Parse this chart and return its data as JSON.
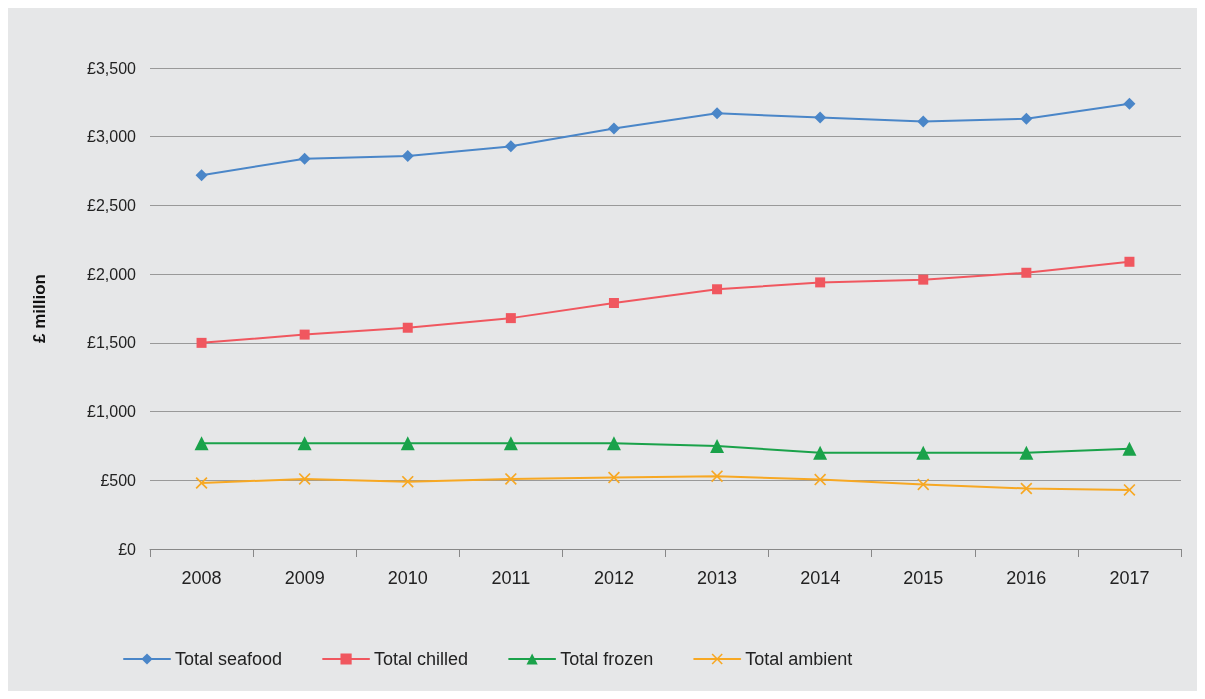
{
  "chart_data": {
    "type": "line",
    "ylabel": "£ million",
    "categories": [
      "2008",
      "2009",
      "2010",
      "2011",
      "2012",
      "2013",
      "2014",
      "2015",
      "2016",
      "2017"
    ],
    "series": [
      {
        "name": "Total seafood",
        "color": "#4a86c8",
        "marker": "diamond",
        "values": [
          2720,
          2840,
          2860,
          2930,
          3060,
          3170,
          3140,
          3110,
          3130,
          3240
        ]
      },
      {
        "name": "Total chilled",
        "color": "#f0575f",
        "marker": "square",
        "values": [
          1500,
          1560,
          1610,
          1680,
          1790,
          1890,
          1940,
          1960,
          2010,
          2090
        ]
      },
      {
        "name": "Total frozen",
        "color": "#1aa24a",
        "marker": "triangle",
        "values": [
          770,
          770,
          770,
          770,
          770,
          750,
          700,
          700,
          700,
          730
        ]
      },
      {
        "name": "Total ambient",
        "color": "#f7a823",
        "marker": "cross",
        "values": [
          480,
          510,
          490,
          510,
          520,
          530,
          505,
          470,
          440,
          430
        ]
      }
    ],
    "ylim": [
      0,
      3500
    ],
    "yticks": [
      {
        "value": 0,
        "label": "£0"
      },
      {
        "value": 500,
        "label": "£500"
      },
      {
        "value": 1000,
        "label": "£1,000"
      },
      {
        "value": 1500,
        "label": "£1,500"
      },
      {
        "value": 2000,
        "label": "£2,000"
      },
      {
        "value": 2500,
        "label": "£2,500"
      },
      {
        "value": 3000,
        "label": "£3,000"
      },
      {
        "value": 3500,
        "label": "£3,500"
      }
    ],
    "grid": "y",
    "legend": "bottom",
    "line_style": "solid"
  }
}
